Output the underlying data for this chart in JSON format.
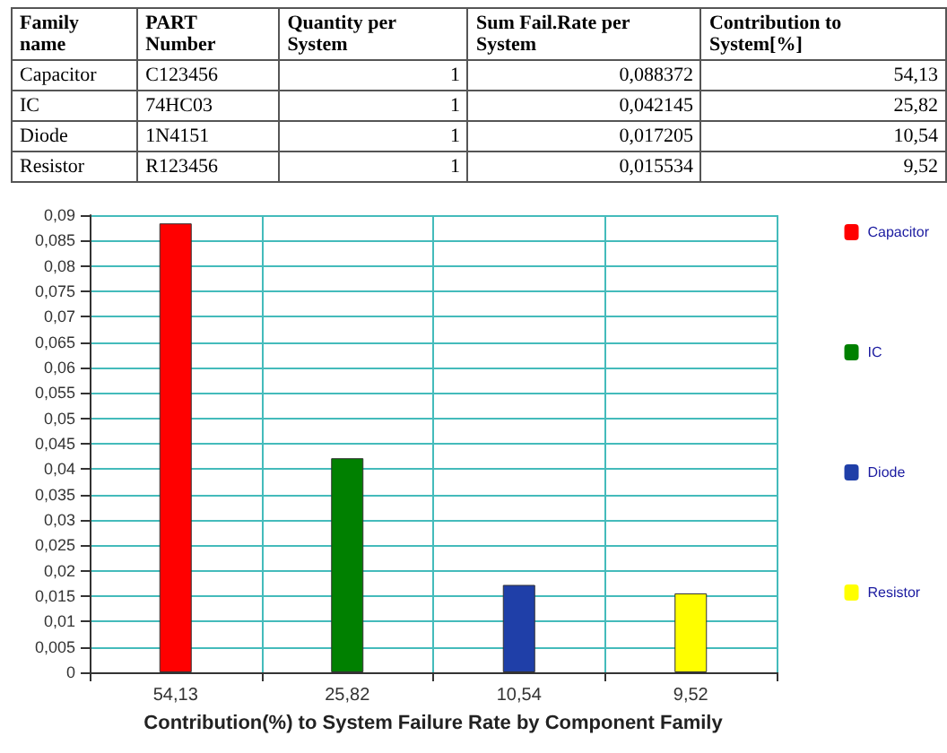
{
  "chart_data": {
    "type": "bar",
    "xlabel": "Contribution(%) to System Failure Rate by Component Family",
    "categories": [
      "54,13",
      "25,82",
      "10,54",
      "9,52"
    ],
    "series": [
      {
        "name": "Capacitor",
        "color": "#ff0000",
        "values": [
          0.088372,
          null,
          null,
          null
        ]
      },
      {
        "name": "IC",
        "color": "#008000",
        "values": [
          null,
          0.042145,
          null,
          null
        ]
      },
      {
        "name": "Diode",
        "color": "#1f3fa8",
        "values": [
          null,
          null,
          0.017205,
          null
        ]
      },
      {
        "name": "Resistor",
        "color": "#ffff00",
        "values": [
          null,
          null,
          null,
          0.015534
        ]
      }
    ],
    "ylim": [
      0,
      0.09
    ],
    "yticks": [
      {
        "value": 0,
        "label": "0"
      },
      {
        "value": 0.005,
        "label": "0,005"
      },
      {
        "value": 0.01,
        "label": "0,01"
      },
      {
        "value": 0.015,
        "label": "0,015"
      },
      {
        "value": 0.02,
        "label": "0,02"
      },
      {
        "value": 0.025,
        "label": "0,025"
      },
      {
        "value": 0.03,
        "label": "0,03"
      },
      {
        "value": 0.035,
        "label": "0,035"
      },
      {
        "value": 0.04,
        "label": "0,04"
      },
      {
        "value": 0.045,
        "label": "0,045"
      },
      {
        "value": 0.05,
        "label": "0,05"
      },
      {
        "value": 0.055,
        "label": "0,055"
      },
      {
        "value": 0.06,
        "label": "0,06"
      },
      {
        "value": 0.065,
        "label": "0,065"
      },
      {
        "value": 0.07,
        "label": "0,07"
      },
      {
        "value": 0.075,
        "label": "0,075"
      },
      {
        "value": 0.08,
        "label": "0,08"
      },
      {
        "value": 0.085,
        "label": "0,085"
      },
      {
        "value": 0.09,
        "label": "0,09"
      }
    ],
    "grid": true,
    "legend": "right",
    "annotations": [
      "Family name",
      "PART Number",
      "Quantity per System",
      "Sum Fail.Rate per System",
      "Contribution to System[%]",
      "Capacitor",
      "C123456",
      "1",
      "0,088372",
      "54,13",
      "IC",
      "74HC03",
      "1",
      "0,042145",
      "25,82",
      "Diode",
      "1N4151",
      "1",
      "0,017205",
      "10,54",
      "Resistor",
      "R123456",
      "1",
      "0,015534",
      "9,52"
    ]
  }
}
